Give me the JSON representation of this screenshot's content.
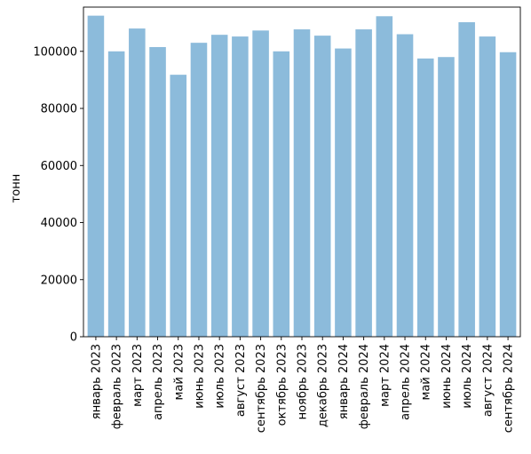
{
  "chart_data": {
    "type": "bar",
    "title": "",
    "xlabel": "",
    "ylabel": "тонн",
    "ylim": [
      0,
      115500
    ],
    "yticks": [
      0,
      20000,
      40000,
      60000,
      80000,
      100000
    ],
    "ytick_labels": [
      "0",
      "20000",
      "40000",
      "60000",
      "80000",
      "100000"
    ],
    "grid": false,
    "bar_color": "#8cbbdb",
    "categories": [
      "январь 2023",
      "февраль 2023",
      "март 2023",
      "апрель 2023",
      "май 2023",
      "июнь 2023",
      "июль 2023",
      "август 2023",
      "сентябрь 2023",
      "октябрь 2023",
      "ноябрь 2023",
      "декабрь 2023",
      "январь 2024",
      "февраль 2024",
      "март 2024",
      "апрель 2024",
      "май 2024",
      "июнь 2024",
      "июль 2024",
      "август 2024",
      "сентябрь 2024"
    ],
    "values": [
      112500,
      100000,
      108000,
      101500,
      91800,
      103000,
      105800,
      105200,
      107300,
      100000,
      107700,
      105500,
      101000,
      107700,
      112300,
      106000,
      97500,
      98000,
      110200,
      105200,
      99700
    ]
  }
}
